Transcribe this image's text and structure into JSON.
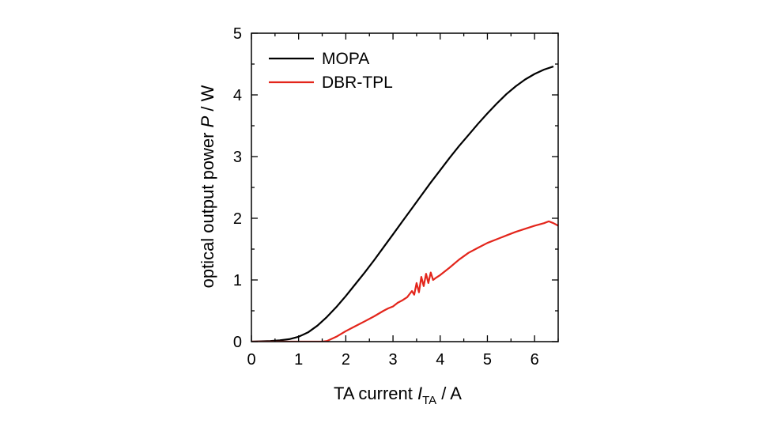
{
  "chart_data": {
    "type": "line",
    "title": "",
    "xlabel": {
      "main": "TA current ",
      "symbol": "I",
      "subscript": "TA",
      "unit": " / A"
    },
    "ylabel": {
      "main": "optical output power ",
      "symbol": "P",
      "unit": " / W"
    },
    "xlim": [
      0,
      6.5
    ],
    "ylim": [
      0,
      5
    ],
    "x_ticks": [
      0,
      1,
      2,
      3,
      4,
      5,
      6
    ],
    "x_tick_labels": [
      "0",
      "1",
      "2",
      "3",
      "4",
      "5",
      "6"
    ],
    "y_ticks": [
      0,
      1,
      2,
      3,
      4,
      5
    ],
    "y_tick_labels": [
      "0",
      "1",
      "2",
      "3",
      "4",
      "5"
    ],
    "grid": false,
    "legend_position": "top-left",
    "series": [
      {
        "name": "MOPA",
        "color": "#000000",
        "x": [
          0,
          0.2,
          0.4,
          0.6,
          0.8,
          1.0,
          1.2,
          1.4,
          1.6,
          1.8,
          2.0,
          2.2,
          2.4,
          2.6,
          2.8,
          3.0,
          3.2,
          3.4,
          3.6,
          3.8,
          4.0,
          4.2,
          4.4,
          4.6,
          4.8,
          5.0,
          5.2,
          5.4,
          5.6,
          5.8,
          6.0,
          6.2,
          6.4
        ],
        "y": [
          0,
          0.005,
          0.01,
          0.02,
          0.04,
          0.08,
          0.15,
          0.26,
          0.4,
          0.56,
          0.74,
          0.93,
          1.12,
          1.32,
          1.53,
          1.74,
          1.95,
          2.16,
          2.37,
          2.58,
          2.78,
          2.98,
          3.17,
          3.35,
          3.53,
          3.7,
          3.86,
          4.01,
          4.14,
          4.25,
          4.34,
          4.41,
          4.46
        ]
      },
      {
        "name": "DBR-TPL",
        "color": "#e3251b",
        "x": [
          0,
          0.5,
          1.0,
          1.5,
          1.6,
          1.8,
          2.0,
          2.2,
          2.4,
          2.6,
          2.8,
          2.9,
          3.0,
          3.1,
          3.2,
          3.3,
          3.4,
          3.45,
          3.5,
          3.55,
          3.6,
          3.65,
          3.7,
          3.75,
          3.8,
          3.85,
          3.9,
          4.0,
          4.2,
          4.4,
          4.6,
          4.8,
          5.0,
          5.2,
          5.4,
          5.6,
          5.8,
          6.0,
          6.2,
          6.3,
          6.4,
          6.5
        ],
        "y": [
          0,
          0,
          0,
          0,
          0.01,
          0.08,
          0.17,
          0.25,
          0.33,
          0.41,
          0.5,
          0.54,
          0.57,
          0.63,
          0.67,
          0.72,
          0.82,
          0.76,
          0.95,
          0.8,
          1.05,
          0.9,
          1.1,
          0.95,
          1.12,
          1.0,
          1.03,
          1.08,
          1.2,
          1.33,
          1.44,
          1.52,
          1.6,
          1.66,
          1.72,
          1.78,
          1.83,
          1.88,
          1.92,
          1.95,
          1.92,
          1.88
        ]
      }
    ]
  }
}
